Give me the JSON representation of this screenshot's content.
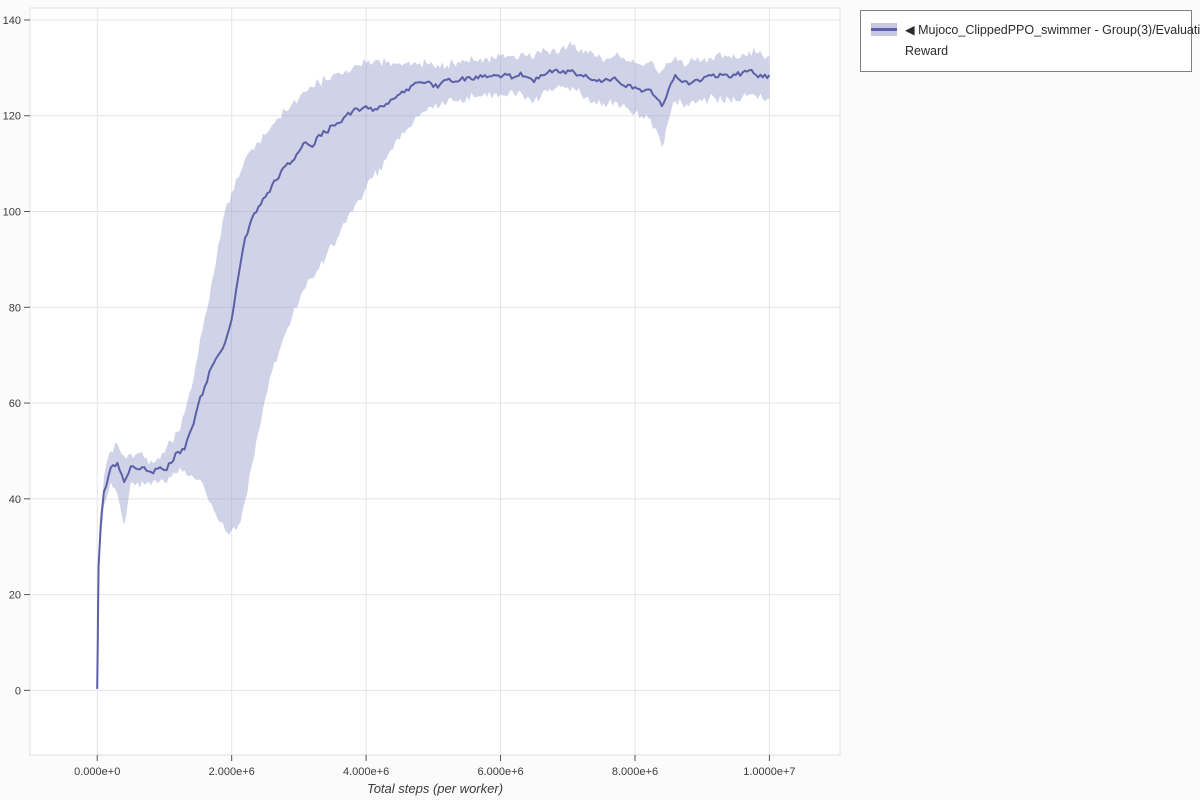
{
  "page": {
    "background": "#fbfbfb"
  },
  "legend": {
    "items": [
      {
        "marker": "◀",
        "label": "Mujoco_ClippedPPO_swimmer - Group(3)/Evaluation Reward",
        "label_lines": [
          "◀ Mujoco_ClippedPPO_swimmer - Group(3)/Evaluation",
          "Reward"
        ]
      }
    ]
  },
  "chart_data": {
    "type": "line",
    "title": "",
    "xlabel": "Total steps (per worker)",
    "ylabel": "",
    "legend_position": "top-right-outside",
    "grid": true,
    "xlim": [
      -1000000,
      11050000
    ],
    "ylim": [
      -13.5,
      142.5
    ],
    "x_ticks": [
      0,
      2000000,
      4000000,
      6000000,
      8000000,
      10000000
    ],
    "x_tick_labels": [
      "0.000e+0",
      "2.000e+6",
      "4.000e+6",
      "6.000e+6",
      "8.000e+6",
      "1.0000e+7"
    ],
    "y_ticks": [
      0,
      20,
      40,
      60,
      80,
      100,
      120,
      140
    ],
    "y_tick_labels": [
      "0",
      "20",
      "40",
      "60",
      "80",
      "100",
      "120",
      "140"
    ],
    "colors": {
      "line": "#5c60a6",
      "band": "#9093c8",
      "grid": "#e4e4ea",
      "frame": "#e0e0e6",
      "tick": "#555555",
      "text": "#3c3c3c",
      "plot_background": "#ffffff"
    },
    "series": [
      {
        "name": "Mujoco_ClippedPPO_swimmer - Group(3)/Evaluation Reward",
        "color": "#5c60a6",
        "band_color": "#9093c8",
        "band_opacity": 0.42,
        "line_jitter": 0.55,
        "band_jitter": 1.1,
        "x": [
          0,
          20000,
          50000,
          100000,
          200000,
          300000,
          400000,
          500000,
          600000,
          700000,
          800000,
          900000,
          1000000,
          1100000,
          1200000,
          1300000,
          1400000,
          1500000,
          1600000,
          1700000,
          1800000,
          1900000,
          2000000,
          2100000,
          2200000,
          2300000,
          2400000,
          2500000,
          2600000,
          2700000,
          2800000,
          2900000,
          3000000,
          3100000,
          3200000,
          3300000,
          3400000,
          3500000,
          3600000,
          3700000,
          3800000,
          3900000,
          4000000,
          4100000,
          4200000,
          4300000,
          4400000,
          4500000,
          4600000,
          4700000,
          4800000,
          4900000,
          5000000,
          5100000,
          5200000,
          5300000,
          5400000,
          5500000,
          5600000,
          5700000,
          5800000,
          5900000,
          6000000,
          6100000,
          6200000,
          6300000,
          6400000,
          6500000,
          6600000,
          6700000,
          6800000,
          6900000,
          7000000,
          7100000,
          7200000,
          7300000,
          7400000,
          7500000,
          7600000,
          7700000,
          7800000,
          7900000,
          8000000,
          8100000,
          8200000,
          8300000,
          8400000,
          8500000,
          8600000,
          8700000,
          8800000,
          8900000,
          9000000,
          9100000,
          9200000,
          9300000,
          9400000,
          9500000,
          9600000,
          9700000,
          9800000,
          9900000,
          10000000
        ],
        "mean": [
          0.3,
          26,
          34,
          41.5,
          46.5,
          47.5,
          43.5,
          46.8,
          46.2,
          46.6,
          45.6,
          46.3,
          46.0,
          47.5,
          49.8,
          50.3,
          54.5,
          59.5,
          63.5,
          67.5,
          70.0,
          72.5,
          77.5,
          86.5,
          94.5,
          98.5,
          101.0,
          103.0,
          105.5,
          107.0,
          109.5,
          110.5,
          112.5,
          114.5,
          113.5,
          116.0,
          116.5,
          118.0,
          118.5,
          120.0,
          121.0,
          121.0,
          122.0,
          121.0,
          122.0,
          122.5,
          123.5,
          124.5,
          125.5,
          126.5,
          127.0,
          127.0,
          126.0,
          126.5,
          127.5,
          127.0,
          127.5,
          128.0,
          127.5,
          128.5,
          128.0,
          128.5,
          128.0,
          128.5,
          128.0,
          129.0,
          128.0,
          127.0,
          128.5,
          129.0,
          129.5,
          129.0,
          129.5,
          129.0,
          128.5,
          128.0,
          127.5,
          127.0,
          127.5,
          128.0,
          126.5,
          126.5,
          126.0,
          125.0,
          125.5,
          124.0,
          122.0,
          125.5,
          128.5,
          127.0,
          126.5,
          127.5,
          127.5,
          128.5,
          128.0,
          128.5,
          128.0,
          128.5,
          129.0,
          129.5,
          128.5,
          128.0,
          128.5
        ],
        "lower": [
          0.2,
          24.0,
          31.0,
          38.5,
          43.5,
          41.0,
          34.5,
          43.5,
          43.5,
          43.0,
          42.8,
          43.2,
          43.5,
          44.5,
          45.5,
          46.0,
          45.0,
          44.0,
          42.0,
          39.0,
          35.5,
          33.5,
          33.5,
          34.5,
          39.5,
          47.0,
          54.0,
          61.0,
          66.5,
          70.5,
          74.5,
          78.0,
          81.0,
          84.0,
          86.0,
          88.0,
          90.5,
          93.0,
          95.0,
          97.5,
          100.0,
          102.5,
          105.0,
          107.0,
          109.0,
          111.0,
          113.0,
          115.0,
          117.0,
          118.5,
          120.0,
          121.0,
          121.5,
          122.0,
          122.5,
          123.0,
          123.5,
          124.0,
          124.0,
          124.0,
          124.0,
          124.5,
          124.5,
          124.0,
          124.5,
          125.0,
          124.0,
          123.0,
          124.0,
          125.0,
          125.5,
          126.0,
          126.0,
          125.5,
          124.5,
          124.0,
          123.0,
          122.0,
          122.5,
          123.0,
          122.0,
          121.5,
          120.5,
          120.0,
          119.5,
          117.5,
          113.5,
          119.0,
          123.0,
          122.5,
          122.0,
          122.5,
          123.0,
          123.5,
          123.5,
          123.0,
          123.5,
          123.0,
          124.0,
          124.5,
          124.0,
          123.5,
          123.5
        ],
        "upper": [
          0.5,
          28.0,
          37.0,
          44.5,
          50.0,
          51.5,
          49.0,
          49.5,
          49.5,
          48.5,
          48.0,
          48.5,
          49.5,
          52.0,
          54.0,
          58.0,
          63.0,
          70.0,
          78.0,
          85.0,
          93.0,
          100.0,
          104.0,
          107.0,
          111.0,
          113.0,
          114.5,
          116.0,
          118.0,
          119.5,
          121.0,
          122.5,
          123.5,
          125.0,
          126.0,
          127.0,
          127.5,
          128.5,
          129.0,
          129.5,
          130.0,
          130.5,
          131.0,
          131.0,
          131.5,
          131.0,
          131.0,
          131.0,
          131.0,
          131.0,
          131.0,
          131.0,
          130.5,
          130.0,
          130.5,
          131.0,
          131.0,
          131.5,
          131.5,
          132.0,
          132.0,
          132.0,
          132.5,
          132.5,
          132.5,
          133.0,
          132.5,
          132.0,
          133.0,
          133.5,
          134.0,
          134.0,
          134.5,
          135.0,
          134.0,
          133.0,
          132.5,
          132.0,
          132.0,
          132.5,
          132.0,
          131.5,
          131.0,
          130.5,
          131.0,
          130.0,
          129.5,
          131.0,
          132.5,
          131.5,
          131.0,
          131.5,
          131.5,
          132.0,
          132.5,
          132.0,
          132.5,
          132.0,
          133.0,
          133.5,
          133.0,
          132.5,
          132.5
        ]
      }
    ]
  }
}
